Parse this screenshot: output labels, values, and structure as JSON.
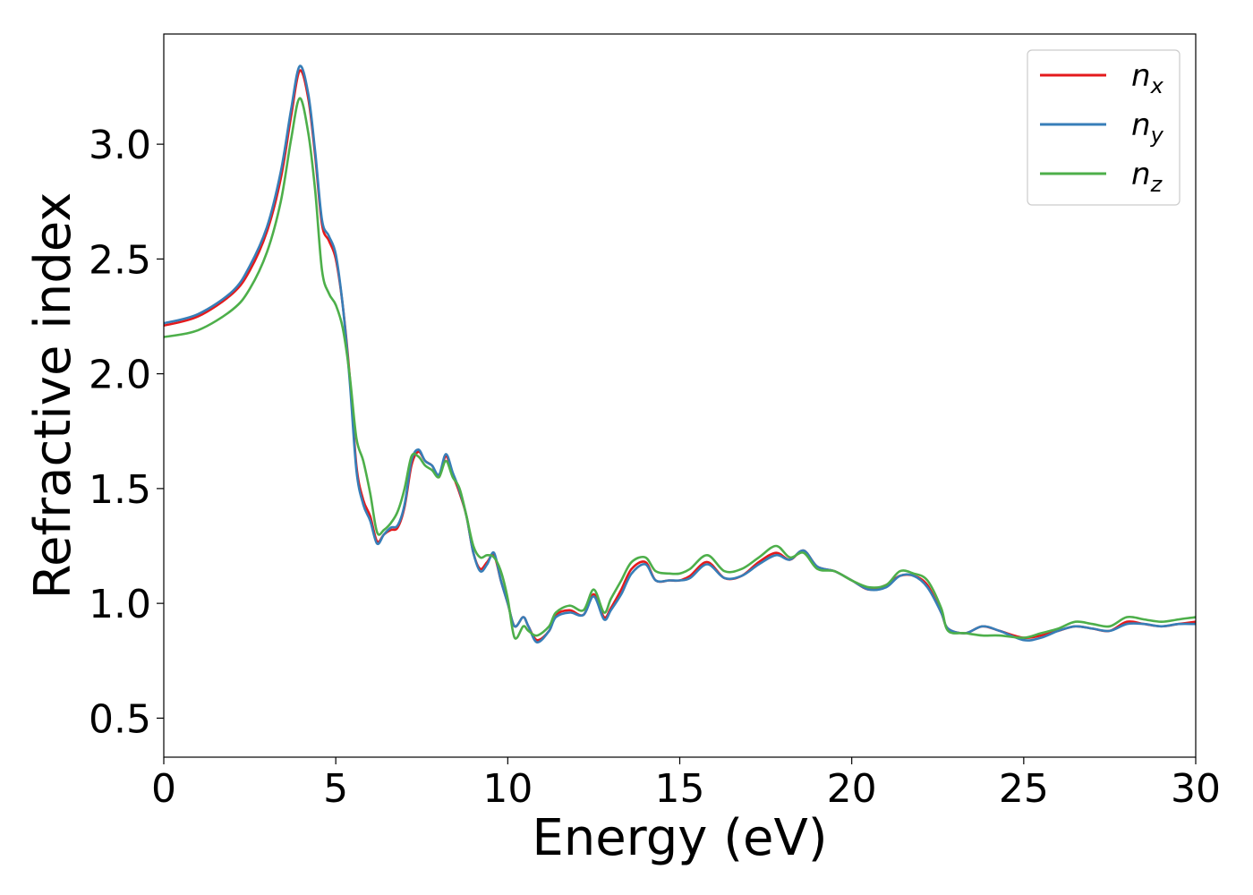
{
  "chart_data": {
    "type": "line",
    "title": "",
    "xlabel": "Energy (eV)",
    "ylabel": "Refractive index",
    "xlim": [
      0,
      30
    ],
    "ylim": [
      0.33,
      3.48
    ],
    "xticks": [
      0,
      5,
      10,
      15,
      20,
      25,
      30
    ],
    "xtick_labels": [
      "0",
      "5",
      "10",
      "15",
      "20",
      "25",
      "30"
    ],
    "yticks": [
      0.5,
      1.0,
      1.5,
      2.0,
      2.5,
      3.0
    ],
    "ytick_labels": [
      "0.5",
      "1.0",
      "1.5",
      "2.0",
      "2.5",
      "3.0"
    ],
    "grid": false,
    "legend_position": "top-right",
    "series": [
      {
        "name": "n",
        "subscript": "x",
        "color": "#e41a1c",
        "points": [
          [
            0,
            2.21
          ],
          [
            1,
            2.25
          ],
          [
            2,
            2.35
          ],
          [
            2.5,
            2.45
          ],
          [
            3,
            2.62
          ],
          [
            3.4,
            2.85
          ],
          [
            3.7,
            3.12
          ],
          [
            3.95,
            3.32
          ],
          [
            4.2,
            3.2
          ],
          [
            4.4,
            2.95
          ],
          [
            4.6,
            2.65
          ],
          [
            4.8,
            2.58
          ],
          [
            5.0,
            2.5
          ],
          [
            5.2,
            2.3
          ],
          [
            5.4,
            2.0
          ],
          [
            5.6,
            1.6
          ],
          [
            5.8,
            1.45
          ],
          [
            6.0,
            1.38
          ],
          [
            6.2,
            1.27
          ],
          [
            6.4,
            1.3
          ],
          [
            6.6,
            1.32
          ],
          [
            6.8,
            1.33
          ],
          [
            7.0,
            1.42
          ],
          [
            7.2,
            1.6
          ],
          [
            7.4,
            1.66
          ],
          [
            7.6,
            1.62
          ],
          [
            7.8,
            1.6
          ],
          [
            8.0,
            1.55
          ],
          [
            8.2,
            1.64
          ],
          [
            8.4,
            1.56
          ],
          [
            8.6,
            1.48
          ],
          [
            8.8,
            1.38
          ],
          [
            9.0,
            1.22
          ],
          [
            9.2,
            1.15
          ],
          [
            9.4,
            1.18
          ],
          [
            9.6,
            1.21
          ],
          [
            9.8,
            1.1
          ],
          [
            10.0,
            1.0
          ],
          [
            10.2,
            0.9
          ],
          [
            10.45,
            0.94
          ],
          [
            10.6,
            0.9
          ],
          [
            10.85,
            0.84
          ],
          [
            11.2,
            0.88
          ],
          [
            11.4,
            0.95
          ],
          [
            11.8,
            0.97
          ],
          [
            12.2,
            0.95
          ],
          [
            12.5,
            1.04
          ],
          [
            12.8,
            0.94
          ],
          [
            13.0,
            0.98
          ],
          [
            13.3,
            1.06
          ],
          [
            13.6,
            1.15
          ],
          [
            14.0,
            1.18
          ],
          [
            14.3,
            1.1
          ],
          [
            14.7,
            1.1
          ],
          [
            15.0,
            1.1
          ],
          [
            15.3,
            1.12
          ],
          [
            15.8,
            1.18
          ],
          [
            16.3,
            1.11
          ],
          [
            16.8,
            1.12
          ],
          [
            17.3,
            1.18
          ],
          [
            17.8,
            1.22
          ],
          [
            18.2,
            1.19
          ],
          [
            18.6,
            1.23
          ],
          [
            19.0,
            1.16
          ],
          [
            19.5,
            1.14
          ],
          [
            20.0,
            1.1
          ],
          [
            20.5,
            1.06
          ],
          [
            21.0,
            1.08
          ],
          [
            21.4,
            1.12
          ],
          [
            21.8,
            1.12
          ],
          [
            22.2,
            1.08
          ],
          [
            22.6,
            0.96
          ],
          [
            22.8,
            0.89
          ],
          [
            23.3,
            0.87
          ],
          [
            23.8,
            0.9
          ],
          [
            24.3,
            0.88
          ],
          [
            25.0,
            0.85
          ],
          [
            25.5,
            0.86
          ],
          [
            26.0,
            0.88
          ],
          [
            26.5,
            0.9
          ],
          [
            27.0,
            0.89
          ],
          [
            27.5,
            0.88
          ],
          [
            28.0,
            0.92
          ],
          [
            28.5,
            0.91
          ],
          [
            29.0,
            0.9
          ],
          [
            29.5,
            0.91
          ],
          [
            30.0,
            0.92
          ]
        ]
      },
      {
        "name": "n",
        "subscript": "y",
        "color": "#377eb8",
        "points": [
          [
            0,
            2.22
          ],
          [
            1,
            2.26
          ],
          [
            2,
            2.36
          ],
          [
            2.5,
            2.47
          ],
          [
            3,
            2.64
          ],
          [
            3.4,
            2.88
          ],
          [
            3.7,
            3.15
          ],
          [
            3.95,
            3.34
          ],
          [
            4.2,
            3.22
          ],
          [
            4.4,
            2.97
          ],
          [
            4.6,
            2.67
          ],
          [
            4.8,
            2.6
          ],
          [
            5.0,
            2.52
          ],
          [
            5.2,
            2.3
          ],
          [
            5.4,
            1.98
          ],
          [
            5.6,
            1.58
          ],
          [
            5.8,
            1.43
          ],
          [
            6.0,
            1.36
          ],
          [
            6.2,
            1.26
          ],
          [
            6.4,
            1.3
          ],
          [
            6.6,
            1.33
          ],
          [
            6.8,
            1.34
          ],
          [
            7.0,
            1.43
          ],
          [
            7.2,
            1.62
          ],
          [
            7.4,
            1.67
          ],
          [
            7.6,
            1.62
          ],
          [
            7.8,
            1.6
          ],
          [
            8.0,
            1.56
          ],
          [
            8.2,
            1.65
          ],
          [
            8.4,
            1.57
          ],
          [
            8.6,
            1.49
          ],
          [
            8.8,
            1.38
          ],
          [
            9.0,
            1.22
          ],
          [
            9.2,
            1.14
          ],
          [
            9.4,
            1.17
          ],
          [
            9.6,
            1.22
          ],
          [
            9.8,
            1.1
          ],
          [
            10.0,
            1.0
          ],
          [
            10.2,
            0.9
          ],
          [
            10.45,
            0.94
          ],
          [
            10.6,
            0.9
          ],
          [
            10.85,
            0.83
          ],
          [
            11.2,
            0.88
          ],
          [
            11.4,
            0.94
          ],
          [
            11.8,
            0.96
          ],
          [
            12.2,
            0.95
          ],
          [
            12.5,
            1.03
          ],
          [
            12.8,
            0.93
          ],
          [
            13.0,
            0.97
          ],
          [
            13.3,
            1.04
          ],
          [
            13.6,
            1.13
          ],
          [
            14.0,
            1.17
          ],
          [
            14.3,
            1.1
          ],
          [
            14.7,
            1.1
          ],
          [
            15.0,
            1.1
          ],
          [
            15.3,
            1.11
          ],
          [
            15.8,
            1.17
          ],
          [
            16.3,
            1.11
          ],
          [
            16.8,
            1.12
          ],
          [
            17.3,
            1.17
          ],
          [
            17.8,
            1.21
          ],
          [
            18.2,
            1.19
          ],
          [
            18.6,
            1.23
          ],
          [
            19.0,
            1.16
          ],
          [
            19.5,
            1.14
          ],
          [
            20.0,
            1.1
          ],
          [
            20.5,
            1.06
          ],
          [
            21.0,
            1.07
          ],
          [
            21.4,
            1.12
          ],
          [
            21.8,
            1.12
          ],
          [
            22.2,
            1.07
          ],
          [
            22.6,
            0.96
          ],
          [
            22.8,
            0.89
          ],
          [
            23.3,
            0.87
          ],
          [
            23.8,
            0.9
          ],
          [
            24.3,
            0.88
          ],
          [
            25.0,
            0.84
          ],
          [
            25.5,
            0.85
          ],
          [
            26.0,
            0.88
          ],
          [
            26.5,
            0.9
          ],
          [
            27.0,
            0.89
          ],
          [
            27.5,
            0.88
          ],
          [
            28.0,
            0.91
          ],
          [
            28.5,
            0.91
          ],
          [
            29.0,
            0.9
          ],
          [
            29.5,
            0.91
          ],
          [
            30.0,
            0.91
          ]
        ]
      },
      {
        "name": "n",
        "subscript": "z",
        "color": "#4daf4a",
        "points": [
          [
            0,
            2.16
          ],
          [
            1,
            2.19
          ],
          [
            2,
            2.28
          ],
          [
            2.5,
            2.37
          ],
          [
            3,
            2.53
          ],
          [
            3.4,
            2.75
          ],
          [
            3.7,
            3.02
          ],
          [
            3.95,
            3.2
          ],
          [
            4.2,
            3.05
          ],
          [
            4.4,
            2.8
          ],
          [
            4.6,
            2.45
          ],
          [
            4.8,
            2.35
          ],
          [
            5.0,
            2.3
          ],
          [
            5.2,
            2.2
          ],
          [
            5.4,
            2.0
          ],
          [
            5.6,
            1.72
          ],
          [
            5.8,
            1.62
          ],
          [
            6.0,
            1.48
          ],
          [
            6.2,
            1.31
          ],
          [
            6.4,
            1.32
          ],
          [
            6.6,
            1.35
          ],
          [
            6.8,
            1.4
          ],
          [
            7.0,
            1.5
          ],
          [
            7.2,
            1.64
          ],
          [
            7.4,
            1.64
          ],
          [
            7.6,
            1.6
          ],
          [
            7.8,
            1.58
          ],
          [
            8.0,
            1.55
          ],
          [
            8.2,
            1.62
          ],
          [
            8.4,
            1.55
          ],
          [
            8.6,
            1.5
          ],
          [
            8.8,
            1.38
          ],
          [
            9.0,
            1.25
          ],
          [
            9.2,
            1.2
          ],
          [
            9.4,
            1.21
          ],
          [
            9.6,
            1.2
          ],
          [
            9.8,
            1.14
          ],
          [
            10.0,
            1.02
          ],
          [
            10.2,
            0.85
          ],
          [
            10.45,
            0.9
          ],
          [
            10.6,
            0.88
          ],
          [
            10.85,
            0.86
          ],
          [
            11.2,
            0.9
          ],
          [
            11.4,
            0.96
          ],
          [
            11.8,
            0.99
          ],
          [
            12.2,
            0.97
          ],
          [
            12.5,
            1.06
          ],
          [
            12.8,
            0.96
          ],
          [
            13.0,
            1.02
          ],
          [
            13.3,
            1.1
          ],
          [
            13.6,
            1.18
          ],
          [
            14.0,
            1.2
          ],
          [
            14.3,
            1.14
          ],
          [
            14.7,
            1.13
          ],
          [
            15.0,
            1.13
          ],
          [
            15.3,
            1.15
          ],
          [
            15.8,
            1.21
          ],
          [
            16.3,
            1.14
          ],
          [
            16.8,
            1.15
          ],
          [
            17.3,
            1.2
          ],
          [
            17.8,
            1.25
          ],
          [
            18.2,
            1.2
          ],
          [
            18.6,
            1.22
          ],
          [
            19.0,
            1.15
          ],
          [
            19.5,
            1.14
          ],
          [
            20.0,
            1.1
          ],
          [
            20.5,
            1.07
          ],
          [
            21.0,
            1.08
          ],
          [
            21.4,
            1.14
          ],
          [
            21.8,
            1.13
          ],
          [
            22.2,
            1.1
          ],
          [
            22.6,
            0.98
          ],
          [
            22.8,
            0.88
          ],
          [
            23.3,
            0.87
          ],
          [
            23.8,
            0.86
          ],
          [
            24.3,
            0.86
          ],
          [
            25.0,
            0.85
          ],
          [
            25.5,
            0.87
          ],
          [
            26.0,
            0.89
          ],
          [
            26.5,
            0.92
          ],
          [
            27.0,
            0.91
          ],
          [
            27.5,
            0.9
          ],
          [
            28.0,
            0.94
          ],
          [
            28.5,
            0.93
          ],
          [
            29.0,
            0.92
          ],
          [
            29.5,
            0.93
          ],
          [
            30.0,
            0.94
          ]
        ]
      }
    ]
  }
}
